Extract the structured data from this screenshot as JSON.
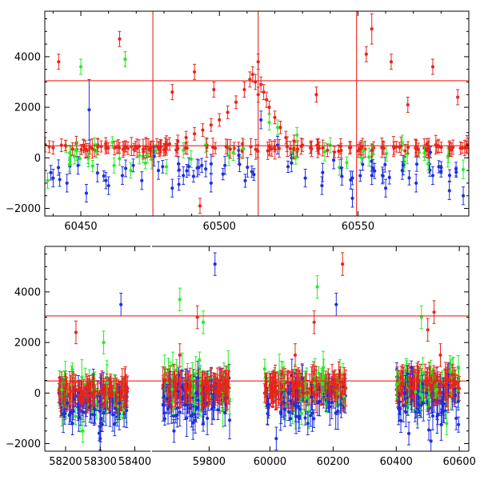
{
  "chart_data": [
    {
      "type": "scatter",
      "panel": "top",
      "title": "",
      "xlabel": "",
      "ylabel": "",
      "xlim": [
        60437,
        60590
      ],
      "ylim": [
        -2300,
        5800
      ],
      "x_ticks": [
        60450,
        60500,
        60550
      ],
      "y_ticks": [
        -2000,
        0,
        2000,
        4000
      ],
      "grid": false,
      "legend": "none",
      "colors": {
        "red": "#e8241c",
        "green": "#22ee22",
        "blue": "#1f2ee0"
      },
      "horizontal_lines": [
        3050,
        480
      ],
      "vertical_lines": [
        60476,
        60514,
        60549.5
      ],
      "series": [
        {
          "color": "red",
          "x": [
            60440,
            60443,
            60447,
            60451,
            60455,
            60459,
            60463,
            60467,
            60471,
            60475,
            60479,
            60482,
            60485,
            60488,
            60491,
            60494,
            60497,
            60500,
            60503,
            60506,
            60509,
            60511,
            60512,
            60513,
            60514,
            60515,
            60516,
            60517,
            60518,
            60520,
            60522,
            60524,
            60527,
            60530,
            60533,
            60536,
            60539,
            60543,
            60547,
            60551,
            60555,
            60559,
            60563,
            60567,
            60571,
            60575,
            60579,
            60583,
            60587,
            60442,
            60464,
            60466,
            60483,
            60491,
            60498,
            60514,
            60535,
            60553,
            60562,
            60568,
            60577,
            60586,
            60493,
            60555
          ],
          "y": [
            400,
            500,
            350,
            450,
            300,
            550,
            420,
            380,
            460,
            300,
            450,
            550,
            650,
            800,
            950,
            1100,
            1300,
            1500,
            1800,
            2200,
            2700,
            3100,
            3300,
            3000,
            2500,
            2900,
            2600,
            2300,
            2000,
            1600,
            1200,
            800,
            650,
            500,
            420,
            380,
            300,
            260,
            400,
            350,
            300,
            420,
            380,
            280,
            450,
            350,
            480,
            420,
            380,
            3800,
            4700,
            3900,
            2600,
            3400,
            2700,
            3800,
            2500,
            4100,
            3800,
            2100,
            3600,
            2400,
            -1900,
            5100
          ],
          "err": [
            250,
            250,
            250,
            250,
            250,
            250,
            250,
            250,
            250,
            250,
            250,
            250,
            250,
            250,
            250,
            250,
            250,
            250,
            250,
            250,
            300,
            300,
            300,
            300,
            300,
            300,
            300,
            300,
            250,
            250,
            250,
            250,
            250,
            250,
            250,
            250,
            250,
            250,
            250,
            250,
            250,
            250,
            250,
            250,
            250,
            250,
            250,
            250,
            250,
            300,
            300,
            300,
            300,
            300,
            300,
            300,
            300,
            300,
            300,
            300,
            300,
            300,
            300,
            600
          ]
        },
        {
          "color": "green",
          "x": [
            60438,
            60446,
            60455,
            60462,
            60468,
            60474,
            60487,
            60495,
            60505,
            60518,
            60521,
            60528,
            60540,
            60552,
            60566,
            60574,
            60450,
            60466
          ],
          "y": [
            -900,
            200,
            500,
            -300,
            -500,
            100,
            300,
            500,
            200,
            1400,
            1200,
            900,
            500,
            300,
            600,
            200,
            3600,
            3900
          ],
          "err": [
            300,
            300,
            300,
            300,
            300,
            300,
            300,
            300,
            300,
            300,
            300,
            300,
            300,
            300,
            300,
            300,
            300,
            300
          ]
        },
        {
          "color": "blue",
          "x": [
            60440,
            60445,
            60449,
            60452,
            60456,
            60460,
            60465,
            60472,
            60478,
            60483,
            60487,
            60492,
            60497,
            60502,
            60507,
            60515,
            60521,
            60526,
            60531,
            60537,
            60544,
            60548,
            60555,
            60560,
            60566,
            60571,
            60577,
            60583,
            60588,
            60453
          ],
          "y": [
            -800,
            -1000,
            -300,
            -1400,
            -600,
            -1100,
            -700,
            -900,
            -500,
            -1200,
            -700,
            -400,
            -1000,
            -300,
            100,
            1500,
            500,
            -200,
            -800,
            -1100,
            -400,
            -1600,
            -700,
            -1200,
            -500,
            -1000,
            -700,
            -1300,
            -1500,
            1900
          ],
          "err": [
            350,
            350,
            350,
            350,
            350,
            350,
            350,
            350,
            350,
            350,
            350,
            350,
            350,
            350,
            350,
            350,
            350,
            350,
            350,
            350,
            350,
            350,
            350,
            350,
            350,
            350,
            350,
            350,
            350,
            1200
          ]
        }
      ]
    },
    {
      "type": "scatter",
      "panel": "bottom",
      "title": "",
      "xlabel": "",
      "ylabel": "",
      "segments": [
        {
          "xlim": [
            58140,
            58445
          ],
          "x_ticks": [
            58200,
            58300,
            58400
          ]
        },
        {
          "xlim": [
            59605,
            59900
          ],
          "x_ticks": [
            59800
          ]
        },
        {
          "xlim": [
            59900,
            60630
          ],
          "x_ticks": [
            60000,
            60200,
            60400,
            60600
          ]
        }
      ],
      "ylim": [
        -2300,
        5800
      ],
      "y_ticks": [
        -2000,
        0,
        2000,
        4000
      ],
      "grid": false,
      "legend": "none",
      "horizontal_lines": [
        3050,
        480
      ],
      "clusters": [
        {
          "x_range": [
            58180,
            58380
          ],
          "y_center": 0,
          "y_spread": 1300
        },
        {
          "x_range": [
            59640,
            59870
          ],
          "y_center": 200,
          "y_spread": 1500
        },
        {
          "x_range": [
            59980,
            60240
          ],
          "y_center": 200,
          "y_spread": 1500
        },
        {
          "x_range": [
            60400,
            60600
          ],
          "y_center": 300,
          "y_spread": 1500
        }
      ],
      "series": [
        {
          "color": "red",
          "x": [
            58200,
            58230,
            58280,
            58330,
            58370,
            59650,
            59700,
            59760,
            59800,
            59850,
            60000,
            60080,
            60140,
            60200,
            60230,
            60420,
            60470,
            60500,
            60520,
            60540,
            60580
          ],
          "y": [
            200,
            2400,
            0,
            300,
            -100,
            500,
            1500,
            3000,
            200,
            400,
            300,
            1500,
            2800,
            400,
            5100,
            400,
            800,
            2500,
            3200,
            1500,
            300
          ]
        },
        {
          "color": "green",
          "x": [
            58250,
            58310,
            59700,
            59780,
            60100,
            60150,
            60480,
            60560
          ],
          "y": [
            -1500,
            2000,
            3700,
            2800,
            -800,
            4200,
            3000,
            -1200
          ]
        },
        {
          "color": "blue",
          "x": [
            58220,
            58300,
            58360,
            59680,
            59740,
            59820,
            60020,
            60120,
            60210,
            60440,
            60510,
            60590
          ],
          "y": [
            -1200,
            -1800,
            3500,
            -1500,
            -900,
            5100,
            -1800,
            -1200,
            3500,
            -1600,
            -1900,
            -1000
          ]
        }
      ]
    }
  ]
}
